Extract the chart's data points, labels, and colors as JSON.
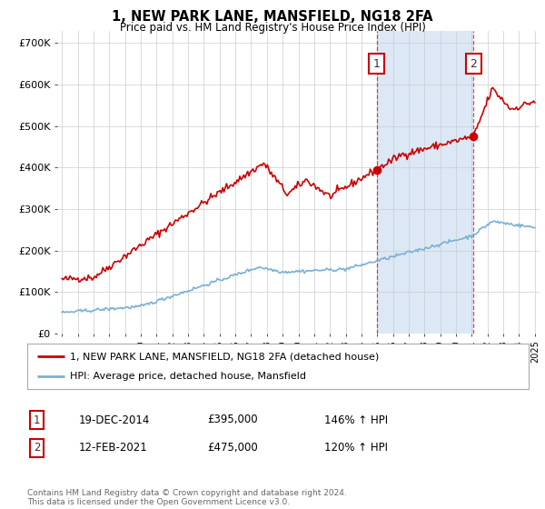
{
  "title": "1, NEW PARK LANE, MANSFIELD, NG18 2FA",
  "subtitle": "Price paid vs. HM Land Registry's House Price Index (HPI)",
  "background_color": "#ffffff",
  "plot_bg_color": "#ffffff",
  "grid_color": "#cccccc",
  "red_line_color": "#cc0000",
  "blue_line_color": "#7ab0d4",
  "highlight_bg_color": "#dce8f5",
  "highlight_vline_color": "#cc0000",
  "ylim": [
    0,
    730000
  ],
  "yticks": [
    0,
    100000,
    200000,
    300000,
    400000,
    500000,
    600000,
    700000
  ],
  "ytick_labels": [
    "£0",
    "£100K",
    "£200K",
    "£300K",
    "£400K",
    "£500K",
    "£600K",
    "£700K"
  ],
  "xstart_year": 1995,
  "xend_year": 2025,
  "sale1_year": 2014.96,
  "sale1_price": 395000,
  "sale1_label": "1",
  "sale2_year": 2021.12,
  "sale2_price": 475000,
  "sale2_label": "2",
  "legend_line1": "1, NEW PARK LANE, MANSFIELD, NG18 2FA (detached house)",
  "legend_line2": "HPI: Average price, detached house, Mansfield",
  "footnote": "Contains HM Land Registry data © Crown copyright and database right 2024.\nThis data is licensed under the Open Government Licence v3.0.",
  "table_row1": [
    "1",
    "19-DEC-2014",
    "£395,000",
    "146% ↑ HPI"
  ],
  "table_row2": [
    "2",
    "12-FEB-2021",
    "£475,000",
    "120% ↑ HPI"
  ]
}
